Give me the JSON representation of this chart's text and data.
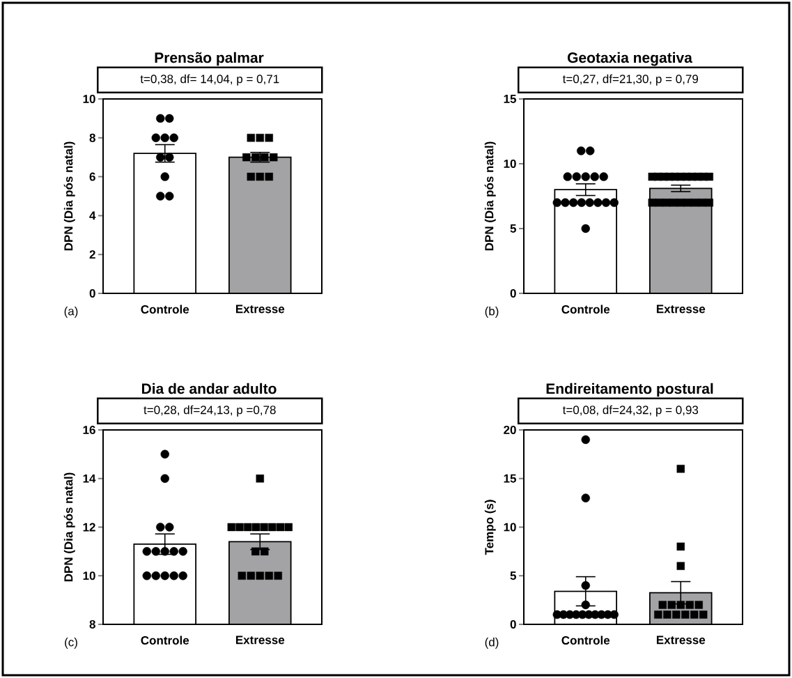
{
  "chart_data": [
    {
      "type": "bar",
      "title": "Prensão palmar",
      "ylabel": "DPN (Dia pós natal)",
      "annotations": [
        "t=0,38, df= 14,04, p = 0,71",
        "(a)"
      ],
      "categories": [
        "Controle",
        "Extresse"
      ],
      "ylim": [
        0,
        10
      ],
      "yticks": [
        0,
        2,
        4,
        6,
        8,
        10
      ],
      "series": [
        {
          "type": "bar",
          "values": [
            7.2,
            7.0
          ],
          "errors": [
            0.45,
            0.25
          ],
          "colors": [
            "#ffffff",
            "#a3a3a6"
          ]
        },
        {
          "type": "scatter",
          "marker": "circle",
          "color": "#000000",
          "x": [
            "Controle",
            "Controle",
            "Controle",
            "Controle",
            "Controle",
            "Controle",
            "Controle",
            "Controle",
            "Controle",
            "Controle"
          ],
          "values": [
            9,
            9,
            8,
            8,
            8,
            7,
            7,
            6,
            5,
            5
          ]
        },
        {
          "type": "scatter",
          "marker": "square",
          "color": "#000000",
          "x": [
            "Extresse",
            "Extresse",
            "Extresse",
            "Extresse",
            "Extresse",
            "Extresse",
            "Extresse",
            "Extresse",
            "Extresse",
            "Extresse"
          ],
          "values": [
            8,
            8,
            8,
            7,
            7,
            7,
            7,
            6,
            6,
            6
          ]
        }
      ]
    },
    {
      "type": "bar",
      "title": "Geotaxia negativa",
      "ylabel": "DPN (Dia pós natal)",
      "annotations": [
        "t=0,27, df=21,30, p = 0,79",
        "(b)"
      ],
      "categories": [
        "Controle",
        "Extresse"
      ],
      "ylim": [
        0,
        15
      ],
      "yticks": [
        0,
        5,
        10,
        15
      ],
      "series": [
        {
          "type": "bar",
          "values": [
            8.0,
            8.1
          ],
          "errors": [
            0.45,
            0.25
          ],
          "colors": [
            "#ffffff",
            "#a3a3a6"
          ]
        },
        {
          "type": "scatter",
          "marker": "circle",
          "color": "#000000",
          "x": [
            "Controle",
            "Controle",
            "Controle",
            "Controle",
            "Controle",
            "Controle",
            "Controle",
            "Controle",
            "Controle",
            "Controle",
            "Controle",
            "Controle",
            "Controle",
            "Controle",
            "Controle",
            "Controle"
          ],
          "values": [
            11,
            11,
            9,
            9,
            9,
            9,
            9,
            7,
            7,
            7,
            7,
            7,
            7,
            7,
            7,
            5
          ]
        },
        {
          "type": "scatter",
          "marker": "square",
          "color": "#000000",
          "x": [
            "Extresse",
            "Extresse",
            "Extresse",
            "Extresse",
            "Extresse",
            "Extresse",
            "Extresse",
            "Extresse",
            "Extresse",
            "Extresse",
            "Extresse",
            "Extresse",
            "Extresse",
            "Extresse",
            "Extresse",
            "Extresse",
            "Extresse",
            "Extresse",
            "Extresse",
            "Extresse"
          ],
          "values": [
            9,
            9,
            9,
            9,
            9,
            9,
            9,
            9,
            9,
            9,
            9,
            7,
            7,
            7,
            7,
            7,
            7,
            7,
            7,
            7
          ]
        }
      ]
    },
    {
      "type": "bar",
      "title": "Dia de andar adulto",
      "ylabel": "DPN (Dia pós natal)",
      "annotations": [
        "t=0,28, df=24,13, p =0,78",
        "(c)"
      ],
      "categories": [
        "Controle",
        "Extresse"
      ],
      "ylim": [
        8,
        16
      ],
      "yticks": [
        8,
        10,
        12,
        14,
        16
      ],
      "series": [
        {
          "type": "bar",
          "values": [
            11.3,
            11.4
          ],
          "errors": [
            0.42,
            0.32
          ],
          "colors": [
            "#ffffff",
            "#a3a3a6"
          ]
        },
        {
          "type": "scatter",
          "marker": "circle",
          "color": "#000000",
          "x": [
            "Controle",
            "Controle",
            "Controle",
            "Controle",
            "Controle",
            "Controle",
            "Controle",
            "Controle",
            "Controle",
            "Controle",
            "Controle",
            "Controle",
            "Controle",
            "Controle"
          ],
          "values": [
            15,
            14,
            12,
            12,
            11,
            11,
            11,
            11,
            11,
            10,
            10,
            10,
            10,
            10
          ]
        },
        {
          "type": "scatter",
          "marker": "square",
          "color": "#000000",
          "x": [
            "Extresse",
            "Extresse",
            "Extresse",
            "Extresse",
            "Extresse",
            "Extresse",
            "Extresse",
            "Extresse",
            "Extresse",
            "Extresse",
            "Extresse",
            "Extresse",
            "Extresse",
            "Extresse",
            "Extresse",
            "Extresse"
          ],
          "values": [
            14,
            12,
            12,
            12,
            12,
            12,
            12,
            12,
            12,
            11,
            11,
            10,
            10,
            10,
            10,
            10
          ]
        }
      ]
    },
    {
      "type": "bar",
      "title": "Endireitamento postural",
      "ylabel": "Tempo (s)",
      "annotations": [
        "t=0,08, df=24,32, p = 0,93",
        "(d)"
      ],
      "categories": [
        "Controle",
        "Extresse"
      ],
      "ylim": [
        0,
        20
      ],
      "yticks": [
        0,
        5,
        10,
        15,
        20
      ],
      "series": [
        {
          "type": "bar",
          "values": [
            3.4,
            3.25
          ],
          "errors": [
            1.5,
            1.15
          ],
          "colors": [
            "#ffffff",
            "#a3a3a6"
          ]
        },
        {
          "type": "scatter",
          "marker": "circle",
          "color": "#000000",
          "x": [
            "Controle",
            "Controle",
            "Controle",
            "Controle",
            "Controle",
            "Controle",
            "Controle",
            "Controle",
            "Controle",
            "Controle",
            "Controle",
            "Controle",
            "Controle",
            "Controle"
          ],
          "values": [
            19,
            13,
            4,
            2,
            1,
            1,
            1,
            1,
            1,
            1,
            1,
            1,
            1,
            1
          ]
        },
        {
          "type": "scatter",
          "marker": "square",
          "color": "#000000",
          "x": [
            "Extresse",
            "Extresse",
            "Extresse",
            "Extresse",
            "Extresse",
            "Extresse",
            "Extresse",
            "Extresse",
            "Extresse",
            "Extresse",
            "Extresse",
            "Extresse",
            "Extresse",
            "Extresse"
          ],
          "values": [
            16,
            8,
            6,
            2,
            2,
            2,
            2,
            2,
            1,
            1,
            1,
            1,
            1,
            1
          ]
        }
      ]
    }
  ]
}
